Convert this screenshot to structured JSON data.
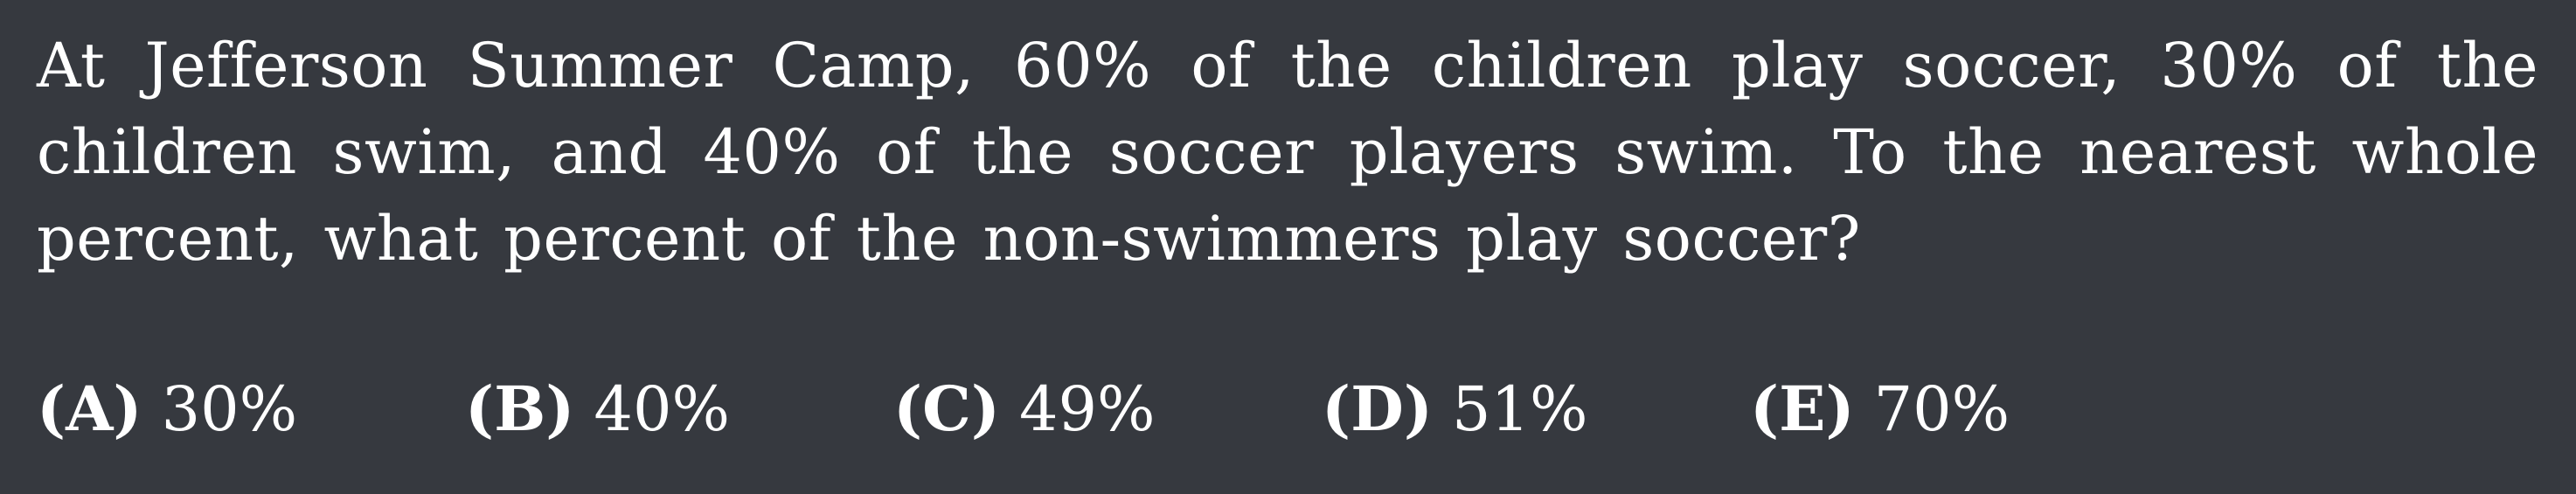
{
  "question": {
    "text": "At Jefferson Summer Camp, 60% of the children play soccer, 30% of the children swim, and 40% of the soccer players swim.  To the nearest whole percent, what percent of the non-swimmers play soccer?"
  },
  "choices": [
    {
      "letter": "(A)",
      "value": "30%"
    },
    {
      "letter": "(B)",
      "value": "40%"
    },
    {
      "letter": "(C)",
      "value": "49%"
    },
    {
      "letter": "(D)",
      "value": "51%"
    },
    {
      "letter": "(E)",
      "value": "70%"
    }
  ],
  "colors": {
    "background": "#36393f",
    "text": "#ffffff"
  }
}
